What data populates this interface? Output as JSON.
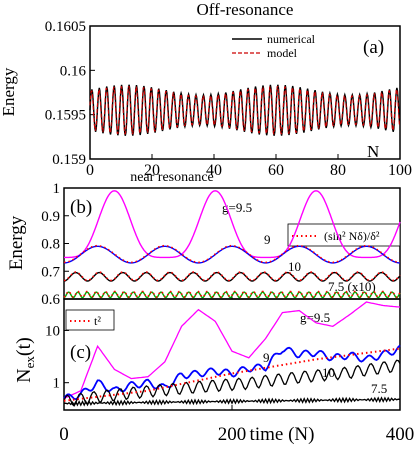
{
  "chart_data": [
    {
      "panel": "(a)",
      "type": "line",
      "title": "Off-resonance",
      "xlabel": "N",
      "ylabel": "Energy",
      "xlim": [
        0,
        100
      ],
      "ylim": [
        0.159,
        0.1605
      ],
      "xticks": [
        "0",
        "20",
        "40",
        "60",
        "80",
        "100"
      ],
      "yticks": [
        "0.159",
        "0.1595",
        "0.16",
        "0.1605"
      ],
      "legend_position": "top-right",
      "colors": {
        "numerical": "#000000",
        "model": "#cc0000"
      },
      "series": [
        {
          "name": "numerical",
          "style": "solid",
          "mean": 0.15955,
          "amplitude": 0.00023,
          "period_N": 2.4,
          "x_range": [
            0,
            100
          ]
        },
        {
          "name": "model",
          "style": "dashed",
          "mean": 0.15955,
          "amplitude": 0.00022,
          "period_N": 2.4,
          "x_range": [
            0,
            100
          ]
        }
      ]
    },
    {
      "panel": "(b)",
      "type": "line",
      "title": "near resonance",
      "ylabel": "Energy",
      "xlim": [
        0,
        400
      ],
      "ylim": [
        0.6,
        1.0
      ],
      "yticks": [
        "0.6",
        "0.7",
        "0.8",
        "0.9",
        "1"
      ],
      "legend": [
        "(sin² Nδ)/δ²"
      ],
      "legend_position": "right",
      "curve_labels": [
        "g=9.5",
        "9",
        "10",
        "7.5 (x10)"
      ],
      "colors": {
        "g9.5": "#ff00ff",
        "g9": "#0000ff",
        "g10": "#000000",
        "g7.5": "#00aa00",
        "model": "#ff0000"
      },
      "series": [
        {
          "label": "g=9.5",
          "min": 0.75,
          "max": 0.99,
          "period": 120,
          "shape": "peaked"
        },
        {
          "label": "9",
          "min": 0.73,
          "max": 0.79,
          "period": 80,
          "shape": "smooth"
        },
        {
          "label": "10",
          "min": 0.665,
          "max": 0.695,
          "period": 28,
          "shape": "smooth"
        },
        {
          "label": "7.5 (x10)",
          "min": 0.605,
          "max": 0.625,
          "period": 11,
          "shape": "smooth"
        }
      ]
    },
    {
      "panel": "(c)",
      "type": "line",
      "xlabel": "time (N)",
      "ylabel": "Nex(t)",
      "xlim": [
        0,
        400
      ],
      "yscale": "log",
      "ylim": [
        0.3,
        40
      ],
      "xticks": [
        "0",
        "200",
        "400"
      ],
      "yticks": [
        "1",
        "10"
      ],
      "legend": [
        "t²"
      ],
      "legend_position": "top-left",
      "curve_labels": [
        "g=9.5",
        "9",
        "10",
        "7.5"
      ],
      "colors": {
        "g9.5": "#ff00ff",
        "g9": "#0000ff",
        "g10": "#000000",
        "g7.5": "#000000",
        "model": "#ff0000"
      },
      "series": [
        {
          "label": "g=9.5",
          "x": [
            0,
            20,
            40,
            60,
            80,
            100,
            120,
            140,
            160,
            180,
            200,
            220,
            240,
            260,
            280,
            300,
            320,
            340,
            360,
            380,
            400
          ],
          "y": [
            0.5,
            0.7,
            5.0,
            1.8,
            1.2,
            1.3,
            2.5,
            12,
            25,
            15,
            4,
            3,
            7,
            22,
            24,
            14,
            12,
            20,
            35,
            30,
            28
          ]
        },
        {
          "label": "9",
          "x": [
            0,
            20,
            40,
            60,
            80,
            100,
            120,
            140,
            160,
            180,
            200,
            220,
            240,
            260,
            280,
            300,
            320,
            340,
            360,
            380,
            400
          ],
          "y": [
            0.5,
            0.6,
            1.0,
            0.7,
            0.9,
            1.0,
            0.8,
            1.4,
            1.5,
            1.7,
            1.5,
            1.9,
            2.0,
            4.5,
            3.5,
            3.8,
            3.0,
            3.4,
            2.8,
            3.5,
            4.5
          ]
        },
        {
          "label": "10",
          "x": [
            0,
            20,
            40,
            60,
            80,
            100,
            120,
            140,
            160,
            180,
            200,
            220,
            240,
            260,
            280,
            300,
            320,
            340,
            360,
            380,
            400
          ],
          "y": [
            0.45,
            0.5,
            0.55,
            0.6,
            0.65,
            0.7,
            0.75,
            0.8,
            0.85,
            0.9,
            0.95,
            1.0,
            1.1,
            1.2,
            1.3,
            1.4,
            1.5,
            1.6,
            1.8,
            2.0,
            2.2
          ]
        },
        {
          "label": "7.5",
          "x": [
            0,
            100,
            200,
            300,
            400
          ],
          "y": [
            0.4,
            0.42,
            0.44,
            0.46,
            0.48
          ]
        },
        {
          "label": "t²",
          "x": [
            0,
            100,
            200,
            300,
            400
          ],
          "y": [
            0.45,
            0.7,
            1.5,
            2.8,
            4.5
          ]
        }
      ]
    }
  ]
}
